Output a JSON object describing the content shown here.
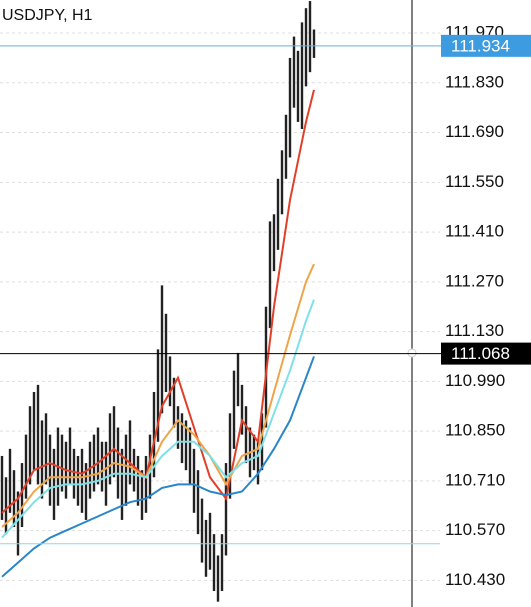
{
  "chart_data": {
    "type": "candlestick",
    "title": "USDJPY, H1",
    "low": [
      110.6,
      110.56,
      110.62,
      110.58,
      110.5,
      110.58,
      110.66,
      110.7,
      110.74,
      110.7,
      110.66,
      110.7,
      110.64,
      110.6,
      110.64,
      110.68,
      110.66,
      110.7,
      110.66,
      110.64,
      110.62,
      110.6,
      110.66,
      110.68,
      110.7,
      110.68,
      110.64,
      110.7,
      110.72,
      110.66,
      110.6,
      110.64,
      110.7,
      110.68,
      110.64,
      110.6,
      110.62,
      110.66,
      110.72,
      110.82,
      110.9,
      110.96,
      110.92,
      110.86,
      110.8,
      110.76,
      110.74,
      110.7,
      110.62,
      110.56,
      110.48,
      110.44,
      110.46,
      110.4,
      110.37,
      110.4,
      110.5,
      110.66,
      110.8,
      110.92,
      110.84,
      110.76,
      110.72,
      110.74,
      110.7,
      110.74,
      110.86,
      111.14,
      111.3,
      111.36,
      111.46,
      111.56,
      111.62,
      111.76,
      111.72,
      111.7,
      111.82,
      111.86,
      111.9
    ],
    "high": [
      110.78,
      110.72,
      110.8,
      110.74,
      110.68,
      110.76,
      110.84,
      110.92,
      110.96,
      110.98,
      110.88,
      110.9,
      110.84,
      110.8,
      110.86,
      110.84,
      110.82,
      110.86,
      110.8,
      110.78,
      110.8,
      110.76,
      110.82,
      110.84,
      110.86,
      110.82,
      110.82,
      110.9,
      110.92,
      110.86,
      110.8,
      110.84,
      110.88,
      110.8,
      110.78,
      110.74,
      110.78,
      110.84,
      110.96,
      111.08,
      111.26,
      111.18,
      111.06,
      111.0,
      110.92,
      110.9,
      110.88,
      110.86,
      110.8,
      110.74,
      110.66,
      110.6,
      110.62,
      110.56,
      110.5,
      110.56,
      110.76,
      110.9,
      111.02,
      111.07,
      110.98,
      110.92,
      110.86,
      110.84,
      110.82,
      110.9,
      111.2,
      111.44,
      111.46,
      111.56,
      111.64,
      111.74,
      111.9,
      111.96,
      111.92,
      112.0,
      112.04,
      112.06,
      111.98
    ],
    "ma_x": [
      0,
      4,
      8,
      12,
      16,
      20,
      24,
      28,
      32,
      36,
      40,
      44,
      48,
      52,
      56,
      60,
      64,
      68,
      72,
      76,
      78
    ],
    "series": [
      {
        "color": "#e0402a",
        "values": [
          110.62,
          110.66,
          110.74,
          110.76,
          110.74,
          110.73,
          110.76,
          110.8,
          110.76,
          110.72,
          110.92,
          111.0,
          110.86,
          110.72,
          110.66,
          110.88,
          110.82,
          111.2,
          111.5,
          111.72,
          111.81
        ]
      },
      {
        "color": "#f0a44a",
        "values": [
          110.58,
          110.62,
          110.68,
          110.72,
          110.72,
          110.72,
          110.73,
          110.76,
          110.75,
          110.72,
          110.82,
          110.88,
          110.84,
          110.78,
          110.7,
          110.78,
          110.8,
          110.96,
          111.12,
          111.27,
          111.32
        ]
      },
      {
        "color": "#7fe0e8",
        "values": [
          110.55,
          110.6,
          110.65,
          110.69,
          110.7,
          110.7,
          110.71,
          110.73,
          110.73,
          110.72,
          110.78,
          110.82,
          110.82,
          110.78,
          110.72,
          110.76,
          110.78,
          110.9,
          111.02,
          111.16,
          111.22
        ]
      },
      {
        "color": "#2a86c8",
        "values": [
          110.44,
          110.48,
          110.52,
          110.55,
          110.57,
          110.59,
          110.61,
          110.63,
          110.65,
          110.66,
          110.69,
          110.7,
          110.7,
          110.68,
          110.67,
          110.68,
          110.73,
          110.8,
          110.88,
          111.0,
          111.06
        ]
      }
    ],
    "hlines": [
      {
        "value": 111.934,
        "color": "#5fb0e6",
        "box_color": "#3d9be0"
      },
      {
        "value": 111.068,
        "color": "#000000",
        "box_color": "#000000"
      },
      {
        "value": 110.533,
        "color": "#8ad8ea"
      }
    ],
    "ylim": [
      110.355,
      112.063
    ],
    "yticks": [
      {
        "value": 111.97,
        "label": "111.970"
      },
      {
        "value": 111.83,
        "label": "111.830"
      },
      {
        "value": 111.69,
        "label": "111.690"
      },
      {
        "value": 111.55,
        "label": "111.550"
      },
      {
        "value": 111.41,
        "label": "111.410"
      },
      {
        "value": 111.27,
        "label": "111.270"
      },
      {
        "value": 111.13,
        "label": "111.130"
      },
      {
        "value": 110.99,
        "label": "110.990"
      },
      {
        "value": 110.85,
        "label": "110.850"
      },
      {
        "value": 110.71,
        "label": "110.710"
      },
      {
        "value": 110.57,
        "label": "110.570"
      },
      {
        "value": 110.43,
        "label": "110.430"
      }
    ],
    "grid": true
  }
}
